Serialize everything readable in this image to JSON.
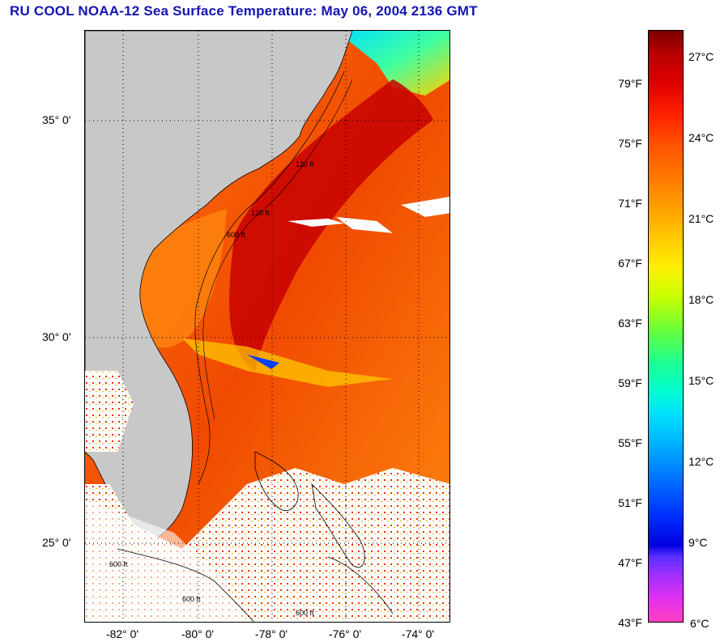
{
  "title": "RU COOL  NOAA-12  Sea Surface Temperature:  May 06, 2004 2136 GMT",
  "map": {
    "lat_labels": [
      "35° 0'",
      "30° 0'",
      "25° 0'"
    ],
    "lon_labels": [
      "-82° 0'",
      "-80° 0'",
      "-78° 0'",
      "-76° 0'",
      "-74° 0'"
    ],
    "contour_labels": [
      "120 ft",
      "120 ft",
      "600 ft",
      "600 ft",
      "600 ft",
      "600 ft"
    ],
    "land_color": "#c8c8c8",
    "water_warm_color": "#e83000",
    "gulf_stream_color": "#c40000",
    "cloud_color": "#ffffff"
  },
  "colorbar": {
    "fahrenheit_labels": [
      "79°F",
      "75°F",
      "71°F",
      "67°F",
      "63°F",
      "59°F",
      "55°F",
      "51°F",
      "47°F",
      "43°F"
    ],
    "celsius_labels": [
      "27°C",
      "24°C",
      "21°C",
      "18°C",
      "15°C",
      "12°C",
      "9°C",
      "6°C"
    ],
    "max_color": "#7a0000",
    "min_color": "#ff40c0"
  }
}
